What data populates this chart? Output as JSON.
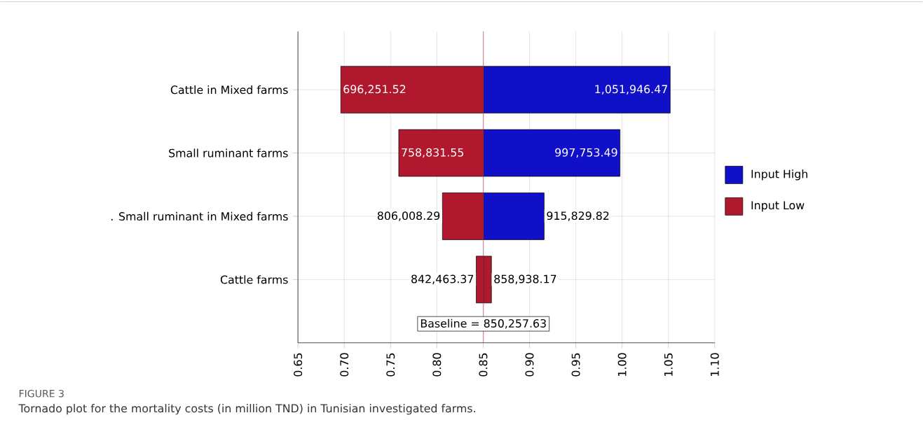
{
  "chart_data": {
    "type": "bar",
    "orientation": "horizontal",
    "categories": [
      "Cattle in Mixed farms",
      "Small ruminant farms",
      ". Small ruminant in Mixed farms",
      "Cattle farms"
    ],
    "series": [
      {
        "name": "Input High",
        "color": "#1010c8",
        "colors": [
          "#1010c8",
          "#1010c8",
          "#1010c8",
          "#b0182e"
        ],
        "base": [
          0.85025763,
          0.85025763,
          0.85025763,
          0.85025763
        ],
        "values": [
          0.20168884,
          0.14749586,
          0.06557219,
          0.00868054
        ]
      },
      {
        "name": "Input Low",
        "color": "#b0182e",
        "base": [
          0.69625152,
          0.75883155,
          0.80600829,
          0.84246337
        ],
        "values": [
          0.15400611,
          0.09142608,
          0.04424934,
          0.00779426
        ]
      }
    ],
    "xlim": [
      0.65,
      1.1
    ],
    "xticks": [
      0.65,
      {
        "value": 0.7,
        "label": "0.70"
      },
      0.75,
      {
        "value": 0.8,
        "label": "0.80"
      },
      0.85,
      {
        "value": 0.9,
        "label": "0.90"
      },
      0.95,
      {
        "value": 1.0,
        "label": "1.00"
      },
      1.05,
      {
        "value": 1.1,
        "label": "1.10"
      }
    ],
    "ref_lines": [
      {
        "axis": "x",
        "value": 0.85025763,
        "label": "Baseline = 850,257.63",
        "color": "#c04060"
      }
    ],
    "grid": true,
    "legend": "right",
    "annotations": [
      "FIGURE 3",
      "Tornado plot for the mortality costs (in million TND) in Tunisian investigated farms.",
      {
        "text": "1,051,946.47",
        "x": 1.05194647,
        "y": "Cattle in Mixed farms"
      },
      {
        "text": "696,251.52",
        "x": 0.69625152,
        "y": "Cattle in Mixed farms"
      },
      {
        "text": "997,753.49",
        "x": 0.99775349,
        "y": "Small ruminant farms"
      },
      {
        "text": "758,831.55",
        "x": 0.75883155,
        "y": "Small ruminant farms"
      },
      {
        "text": "915,829.82",
        "x": 0.91582982,
        "y": ". Small ruminant in Mixed farms"
      },
      {
        "text": "806,008.29",
        "x": 0.80600829,
        "y": ". Small ruminant in Mixed farms"
      },
      {
        "text": "858,938.17",
        "x": 0.85893817,
        "y": "Cattle farms"
      },
      {
        "text": "842,463.37",
        "x": 0.84246337,
        "y": "Cattle farms"
      }
    ]
  }
}
